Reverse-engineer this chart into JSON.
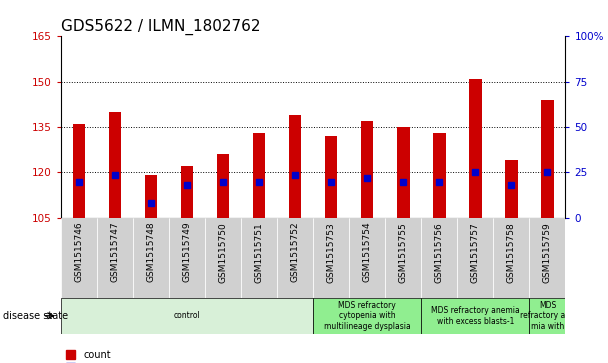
{
  "title": "GDS5622 / ILMN_1802762",
  "samples": [
    "GSM1515746",
    "GSM1515747",
    "GSM1515748",
    "GSM1515749",
    "GSM1515750",
    "GSM1515751",
    "GSM1515752",
    "GSM1515753",
    "GSM1515754",
    "GSM1515755",
    "GSM1515756",
    "GSM1515757",
    "GSM1515758",
    "GSM1515759"
  ],
  "count_values": [
    136,
    140,
    119,
    122,
    126,
    133,
    139,
    132,
    137,
    135,
    133,
    151,
    124,
    144
  ],
  "baseline": 105,
  "percentile_values": [
    117,
    119,
    110,
    116,
    117,
    117,
    119,
    117,
    118,
    117,
    117,
    120,
    116,
    120
  ],
  "ylim_left": [
    105,
    165
  ],
  "ylim_right": [
    0,
    100
  ],
  "yticks_left": [
    105,
    120,
    135,
    150,
    165
  ],
  "yticks_right": [
    0,
    25,
    50,
    75,
    100
  ],
  "bar_color": "#cc0000",
  "percentile_color": "#0000cc",
  "bar_width": 0.35,
  "disease_groups": [
    {
      "label": "control",
      "start": 0,
      "end": 7,
      "color": "#d8f0d8"
    },
    {
      "label": "MDS refractory\ncytopenia with\nmultilineage dysplasia",
      "start": 7,
      "end": 10,
      "color": "#90ee90"
    },
    {
      "label": "MDS refractory anemia\nwith excess blasts-1",
      "start": 10,
      "end": 13,
      "color": "#90ee90"
    },
    {
      "label": "MDS\nrefractory ane\nmia with",
      "start": 13,
      "end": 14,
      "color": "#90ee90"
    }
  ],
  "grid_color": "#000000",
  "tick_label_color_left": "#cc0000",
  "tick_label_color_right": "#0000cc",
  "tick_label_size": 7.5,
  "title_fontsize": 11,
  "plot_bg": "#ffffff",
  "xtick_bg": "#d0d0d0"
}
